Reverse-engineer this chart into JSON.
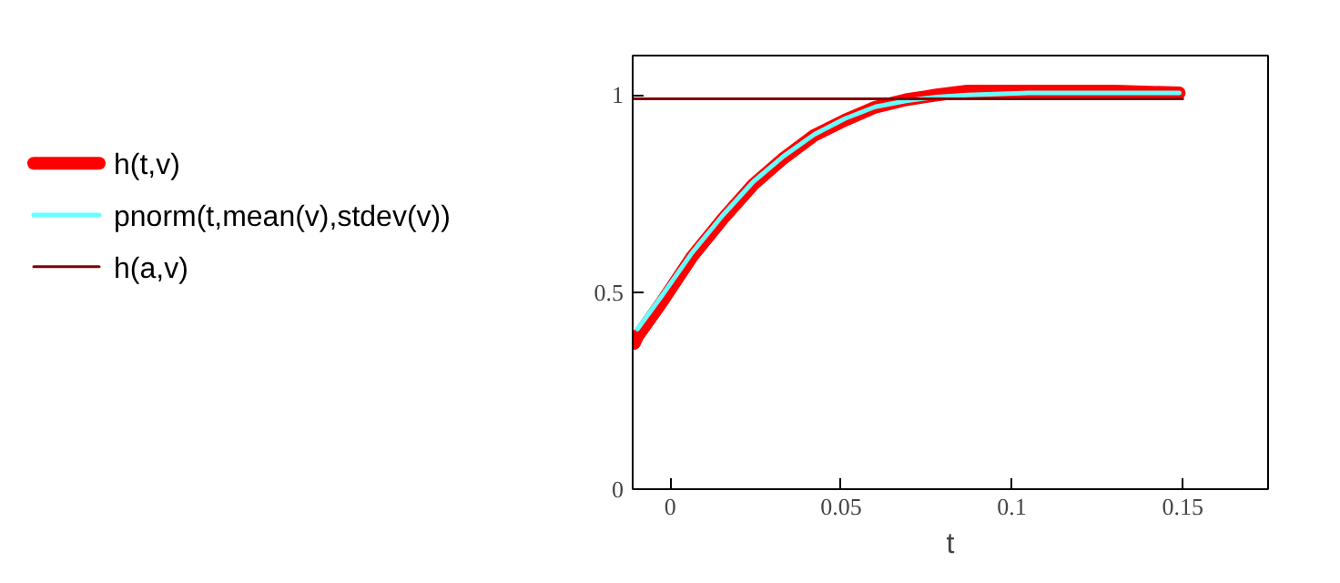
{
  "chart_data": {
    "type": "line",
    "xlabel": "t",
    "xlim": [
      -0.011,
      0.175
    ],
    "ylim": [
      0,
      1.1
    ],
    "xticks": [
      0,
      0.05,
      0.1,
      0.15
    ],
    "yticks": [
      0,
      0.5,
      1
    ],
    "grid": false,
    "legend": "left",
    "marker": "none",
    "series": [
      {
        "name": "h(t,v)",
        "color": "#ff0000",
        "x": [
          -0.0105,
          -0.0096,
          -0.0025,
          0.0064,
          0.0154,
          0.0243,
          0.0332,
          0.0422,
          0.0511,
          0.06,
          0.069,
          0.078,
          0.087,
          0.105,
          0.13,
          0.149
        ],
        "values": [
          0.37,
          0.387,
          0.474,
          0.59,
          0.686,
          0.773,
          0.84,
          0.898,
          0.936,
          0.969,
          0.988,
          1.0,
          1.01,
          1.01,
          1.01,
          1.005
        ]
      },
      {
        "name": "pnorm(t,mean(v),stdev(v))",
        "color": "#66ffff",
        "x": [
          -0.0096,
          -0.0025,
          0.0064,
          0.0154,
          0.0243,
          0.0332,
          0.0422,
          0.0511,
          0.06,
          0.069,
          0.078,
          0.087,
          0.105,
          0.13,
          0.149
        ],
        "values": [
          0.406,
          0.49,
          0.6,
          0.695,
          0.78,
          0.845,
          0.9,
          0.94,
          0.97,
          0.985,
          0.995,
          1.0,
          1.005,
          1.005,
          1.005
        ]
      },
      {
        "name": "h(a,v)",
        "color": "#800000",
        "x": [
          -0.011,
          0.15
        ],
        "values": [
          0.99,
          0.99
        ]
      }
    ]
  }
}
